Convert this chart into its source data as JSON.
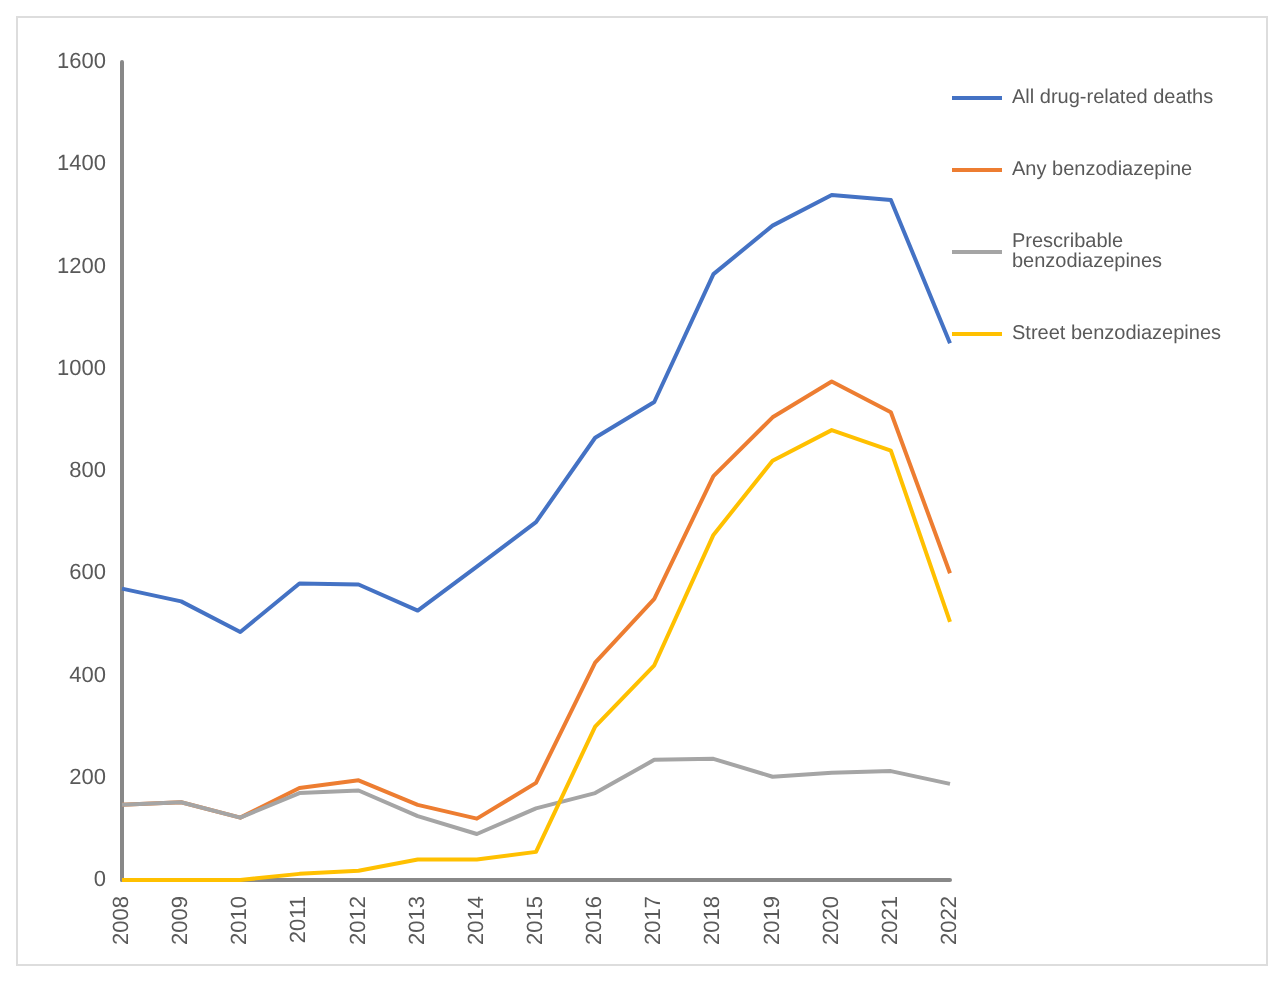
{
  "chart_data": {
    "type": "line",
    "categories": [
      "2008",
      "2009",
      "2010",
      "2011",
      "2012",
      "2013",
      "2014",
      "2015",
      "2016",
      "2017",
      "2018",
      "2019",
      "2020",
      "2021",
      "2022"
    ],
    "series": [
      {
        "name": "All drug-related deaths",
        "color": "#4472c4",
        "values": [
          570,
          545,
          485,
          580,
          578,
          527,
          613,
          700,
          865,
          935,
          1185,
          1280,
          1340,
          1330,
          1050
        ]
      },
      {
        "name": "Any benzodiazepine",
        "color": "#ed7d31",
        "values": [
          147,
          152,
          122,
          180,
          195,
          147,
          120,
          190,
          425,
          550,
          790,
          905,
          975,
          915,
          600
        ]
      },
      {
        "name": "Prescribable benzodiazepines",
        "color": "#a5a5a5",
        "values": [
          147,
          152,
          122,
          170,
          175,
          125,
          90,
          140,
          170,
          235,
          237,
          202,
          210,
          213,
          188
        ]
      },
      {
        "name": "Street benzodiazepines",
        "color": "#ffc000",
        "values": [
          0,
          0,
          0,
          12,
          18,
          40,
          40,
          55,
          300,
          420,
          675,
          820,
          880,
          840,
          505
        ]
      }
    ],
    "ylim": [
      0,
      1600
    ],
    "yticks": [
      0,
      200,
      400,
      600,
      800,
      1000,
      1200,
      1400,
      1600
    ],
    "grid": false,
    "legend": "right",
    "marker": "none",
    "line_style": "solid"
  }
}
